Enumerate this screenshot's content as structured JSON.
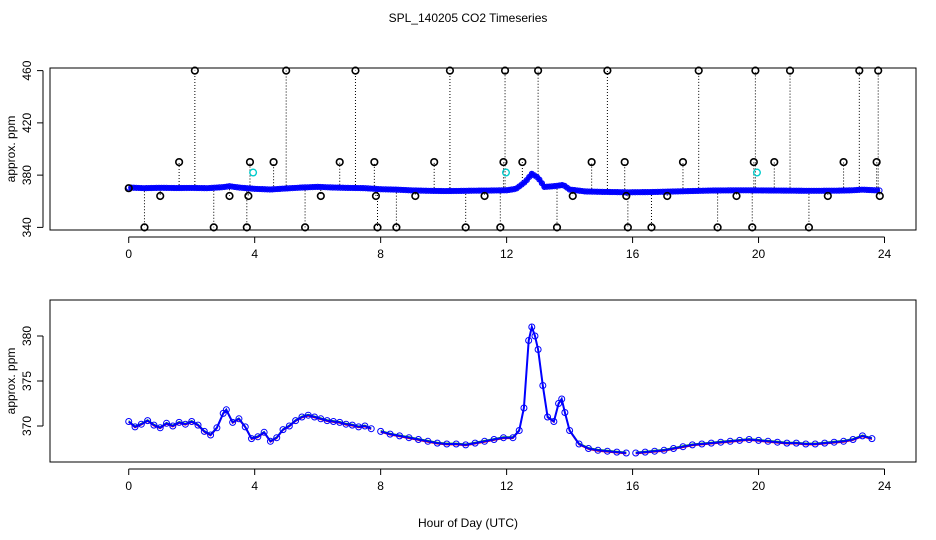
{
  "title": "SPL_140205  CO2 Timeseries",
  "xlabel": "Hour of Day (UTC)",
  "colors": {
    "flag_marker": "#000000",
    "main_series": "#0000ff",
    "alt_marker": "#00cccc",
    "red_series": "#ff0000",
    "green_series": "#00aa00",
    "stem": "#000000"
  },
  "chart_data": [
    {
      "type": "scatter",
      "name": "top-panel",
      "ylabel": "approx. ppm",
      "xlim": [
        -2.5,
        25
      ],
      "ylim": [
        338,
        462
      ],
      "xticks": [
        0,
        4,
        8,
        12,
        16,
        20,
        24
      ],
      "yticks": [
        340,
        380,
        420,
        460
      ],
      "xtick_labels": [
        "0",
        "4",
        "8",
        "12",
        "16",
        "20",
        "24"
      ],
      "ytick_labels": [
        "340",
        "380",
        "420",
        "460"
      ],
      "baseline_x": [
        0.0,
        0.5,
        1.0,
        1.5,
        2.0,
        2.5,
        3.0,
        3.2,
        3.5,
        4.0,
        4.5,
        5.0,
        5.5,
        6.0,
        6.5,
        7.0,
        7.5,
        8.0,
        8.5,
        9.0,
        9.5,
        10.0,
        10.5,
        11.0,
        11.5,
        12.0,
        12.3,
        12.6,
        12.8,
        13.0,
        13.2,
        13.5,
        13.8,
        14.0,
        14.5,
        15.0,
        15.5,
        15.9,
        16.0,
        16.5,
        17.0,
        17.5,
        18.0,
        18.5,
        19.0,
        19.5,
        20.0,
        20.5,
        21.0,
        21.5,
        22.0,
        22.5,
        23.0,
        23.3,
        23.6,
        23.85
      ],
      "baseline_y": [
        370.5,
        370.0,
        370.3,
        370.1,
        370.2,
        370.0,
        370.8,
        371.5,
        370.5,
        369.5,
        369.0,
        369.8,
        370.5,
        371.0,
        370.5,
        370.2,
        370.0,
        369.2,
        368.9,
        368.3,
        368.0,
        367.8,
        367.9,
        368.1,
        368.2,
        368.4,
        369.5,
        375.0,
        381.0,
        378.0,
        371.0,
        371.5,
        372.5,
        369.0,
        367.5,
        367.2,
        367.0,
        366.8,
        366.9,
        367.0,
        367.3,
        367.6,
        367.9,
        368.2,
        368.3,
        368.4,
        368.3,
        368.2,
        368.1,
        368.0,
        368.0,
        368.1,
        368.4,
        368.9,
        368.5,
        368.2
      ],
      "flags_x": [
        0.0,
        0.5,
        1.0,
        1.6,
        2.1,
        2.7,
        3.2,
        3.75,
        3.8,
        3.85,
        4.6,
        5.0,
        5.6,
        6.1,
        6.7,
        7.2,
        7.8,
        7.85,
        7.9,
        8.5,
        9.1,
        9.7,
        10.2,
        10.7,
        11.3,
        11.8,
        11.9,
        11.95,
        12.5,
        13.0,
        13.6,
        14.1,
        14.7,
        15.2,
        15.75,
        15.8,
        15.85,
        16.6,
        17.1,
        17.6,
        18.1,
        18.7,
        19.3,
        19.8,
        19.85,
        19.9,
        20.5,
        21.0,
        21.6,
        22.2,
        22.7,
        23.2,
        23.75,
        23.8,
        23.85
      ],
      "flags_y": [
        370,
        340,
        364,
        390,
        460,
        340,
        364,
        340,
        364,
        390,
        390,
        460,
        340,
        364,
        390,
        460,
        390,
        364,
        340,
        340,
        364,
        390,
        460,
        340,
        364,
        340,
        390,
        460,
        390,
        460,
        340,
        364,
        390,
        460,
        390,
        364,
        340,
        340,
        364,
        390,
        460,
        340,
        364,
        340,
        390,
        460,
        390,
        460,
        340,
        364,
        390,
        460,
        390,
        460,
        364
      ],
      "alt_x": [
        3.95,
        11.98,
        19.95
      ],
      "alt_y": [
        382,
        382,
        382
      ]
    },
    {
      "type": "line",
      "name": "bottom-panel",
      "ylabel": "approx. ppm",
      "xlim": [
        -2.5,
        25
      ],
      "ylim": [
        366,
        384
      ],
      "xticks": [
        0,
        4,
        8,
        12,
        16,
        20,
        24
      ],
      "yticks": [
        370,
        375,
        380
      ],
      "xtick_labels": [
        "0",
        "4",
        "8",
        "12",
        "16",
        "20",
        "24"
      ],
      "ytick_labels": [
        "370",
        "375",
        "380"
      ],
      "x": [
        0.0,
        0.2,
        0.4,
        0.6,
        0.8,
        1.0,
        1.2,
        1.4,
        1.6,
        1.8,
        2.0,
        2.2,
        2.4,
        2.6,
        2.8,
        3.0,
        3.1,
        3.3,
        3.5,
        3.7,
        3.9,
        4.1,
        4.3,
        4.5,
        4.7,
        4.9,
        5.1,
        5.3,
        5.5,
        5.7,
        5.9,
        6.1,
        6.3,
        6.5,
        6.7,
        6.9,
        7.1,
        7.3,
        7.5,
        7.7,
        8.0,
        8.3,
        8.6,
        8.9,
        9.2,
        9.5,
        9.8,
        10.1,
        10.4,
        10.7,
        11.0,
        11.3,
        11.6,
        11.9,
        12.2,
        12.4,
        12.55,
        12.7,
        12.8,
        12.9,
        13.0,
        13.15,
        13.3,
        13.5,
        13.65,
        13.75,
        13.85,
        14.0,
        14.3,
        14.6,
        14.9,
        15.2,
        15.5,
        15.8,
        16.1,
        16.4,
        16.7,
        17.0,
        17.3,
        17.6,
        17.9,
        18.2,
        18.5,
        18.8,
        19.1,
        19.4,
        19.7,
        20.0,
        20.3,
        20.6,
        20.9,
        21.2,
        21.5,
        21.8,
        22.1,
        22.4,
        22.7,
        23.0,
        23.3,
        23.6
      ],
      "y": [
        370.5,
        369.9,
        370.2,
        370.6,
        370.1,
        369.8,
        370.3,
        370.0,
        370.4,
        370.2,
        370.5,
        370.1,
        369.4,
        369.0,
        369.8,
        371.4,
        371.8,
        370.4,
        370.8,
        369.9,
        368.6,
        368.8,
        369.3,
        368.3,
        368.7,
        369.6,
        370.0,
        370.6,
        371.0,
        371.2,
        371.0,
        370.8,
        370.6,
        370.5,
        370.4,
        370.2,
        370.1,
        369.9,
        370.0,
        369.7,
        369.4,
        369.1,
        368.9,
        368.7,
        368.5,
        368.3,
        368.1,
        368.0,
        368.0,
        367.9,
        368.1,
        368.3,
        368.5,
        368.7,
        368.7,
        369.5,
        372.0,
        379.5,
        381.0,
        380.0,
        378.5,
        374.5,
        371.0,
        370.5,
        372.5,
        373.0,
        371.5,
        369.5,
        368.0,
        367.5,
        367.3,
        367.2,
        367.1,
        367.0,
        367.0,
        367.1,
        367.2,
        367.3,
        367.5,
        367.7,
        367.9,
        368.0,
        368.1,
        368.2,
        368.3,
        368.4,
        368.5,
        368.4,
        368.3,
        368.2,
        368.1,
        368.1,
        368.0,
        368.0,
        368.1,
        368.2,
        368.3,
        368.5,
        368.9,
        368.6
      ]
    }
  ]
}
